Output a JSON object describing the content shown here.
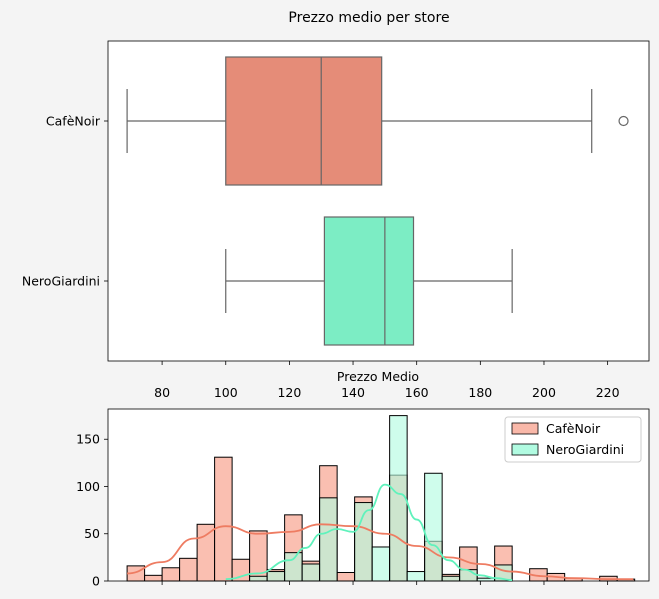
{
  "chart_data": [
    {
      "type": "box",
      "title": "Prezzo medio per store",
      "xlabel": "Prezzo Medio",
      "ylabel": "",
      "xlim": [
        63,
        233
      ],
      "xticks": [
        80,
        100,
        120,
        140,
        160,
        180,
        200,
        220
      ],
      "categories": [
        "CafèNoir",
        "NeroGiardini"
      ],
      "series": [
        {
          "name": "CafèNoir",
          "color": "#e58c78",
          "whisker_low": 69,
          "q1": 100,
          "median": 130,
          "q3": 149,
          "whisker_high": 215,
          "outliers": [
            225
          ]
        },
        {
          "name": "NeroGiardini",
          "color": "#7cedc4",
          "whisker_low": 100,
          "q1": 131,
          "median": 150,
          "q3": 159,
          "whisker_high": 190,
          "outliers": []
        }
      ],
      "grid": false
    },
    {
      "type": "histogram",
      "title": "",
      "xlabel": "",
      "ylabel": "",
      "xlim": [
        63,
        233
      ],
      "ylim": [
        0,
        182
      ],
      "yticks": [
        0,
        50,
        100,
        150
      ],
      "x_ticklabels_shown": false,
      "legend": "top-right",
      "bin_edges": [
        69,
        74.5,
        80,
        85.5,
        91,
        96.5,
        102,
        107.5,
        113,
        118.5,
        124,
        129.5,
        135,
        140.5,
        146,
        151.5,
        157,
        162.5,
        168,
        173.5,
        179,
        184.5,
        190,
        195.5,
        201,
        206.5,
        212,
        217.5,
        223,
        228.5
      ],
      "series": [
        {
          "name": "CafèNoir",
          "color": "#f9b8a9",
          "line_color": "#ee7c62",
          "counts": [
            16,
            6,
            14,
            24,
            60,
            131,
            23,
            53,
            12,
            70,
            21,
            122,
            9,
            89,
            0,
            112,
            0,
            42,
            7,
            36,
            0,
            37,
            0,
            13,
            8,
            3,
            0,
            5,
            2
          ],
          "kde_x": [
            69,
            80,
            90,
            100,
            110,
            120,
            130,
            140,
            150,
            160,
            170,
            180,
            190,
            200,
            210,
            220,
            228
          ],
          "kde_y": [
            8,
            20,
            45,
            58,
            50,
            52,
            60,
            58,
            50,
            37,
            25,
            18,
            10,
            5,
            3,
            2,
            2
          ]
        },
        {
          "name": "NeroGiardini",
          "color": "#b1fbe1",
          "line_color": "#60f2bc",
          "counts": [
            0,
            0,
            0,
            0,
            0,
            0,
            0,
            5,
            10,
            30,
            18,
            88,
            0,
            83,
            36,
            175,
            10,
            114,
            5,
            12,
            3,
            17,
            0,
            0,
            0,
            0,
            0,
            0,
            0
          ],
          "kde_x": [
            100,
            110,
            120,
            125,
            130,
            135,
            140,
            145,
            150,
            155,
            160,
            165,
            170,
            175,
            180,
            185,
            190
          ],
          "kde_y": [
            2,
            8,
            22,
            35,
            50,
            55,
            52,
            75,
            102,
            92,
            65,
            38,
            22,
            12,
            6,
            3,
            1
          ]
        }
      ],
      "grid": false
    }
  ]
}
